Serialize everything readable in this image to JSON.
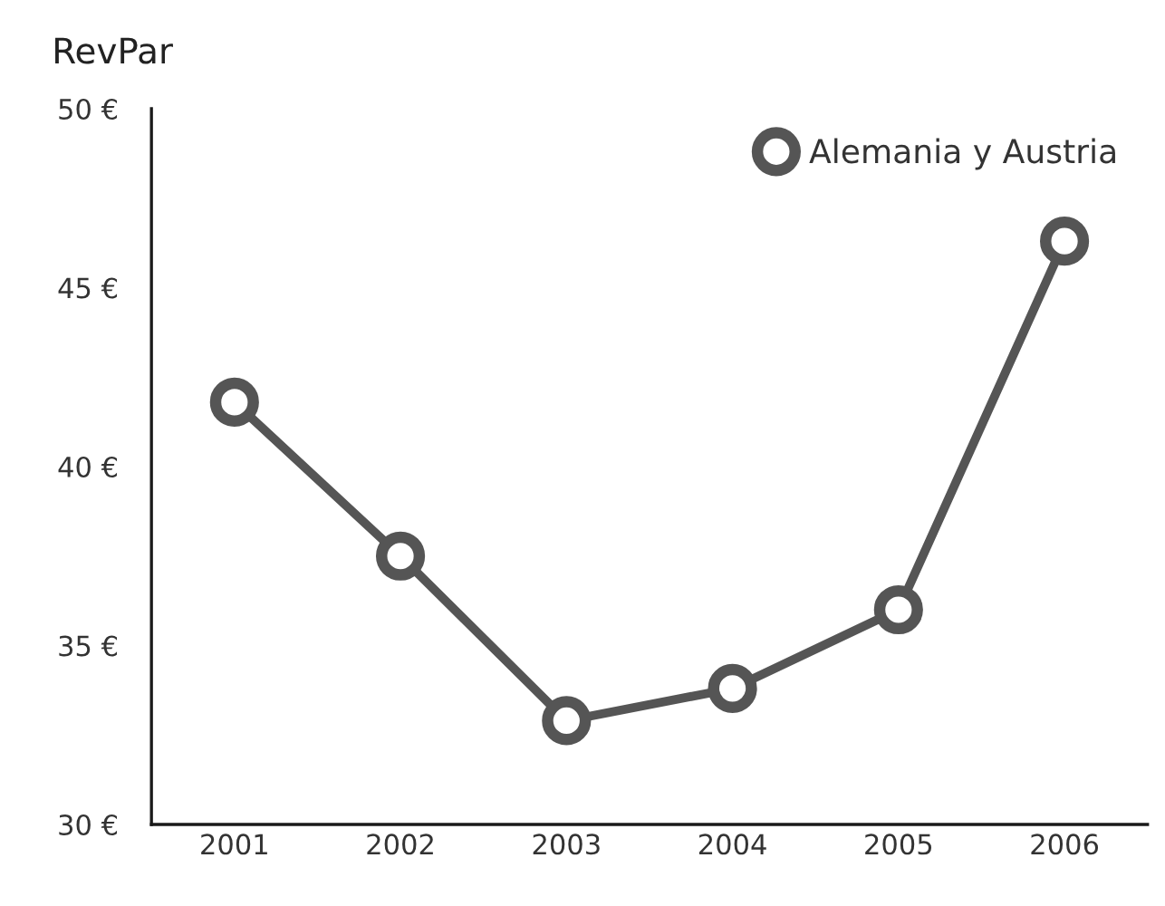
{
  "chart_data": {
    "type": "line",
    "title": "RevPar",
    "categories": [
      "2001",
      "2002",
      "2003",
      "2004",
      "2005",
      "2006"
    ],
    "series": [
      {
        "name": "Alemania y Austria",
        "color": "#555555",
        "values": [
          41.8,
          37.5,
          32.9,
          33.8,
          36.0,
          46.3
        ]
      }
    ],
    "ylim": [
      30,
      50
    ],
    "yticks": [
      {
        "value": 30,
        "label": "30 €"
      },
      {
        "value": 35,
        "label": "35 €"
      },
      {
        "value": 40,
        "label": "40 €"
      },
      {
        "value": 45,
        "label": "45 €"
      },
      {
        "value": 50,
        "label": "50 €"
      }
    ],
    "marker": "circle",
    "line_style": "solid",
    "grid": false,
    "legend": "top right"
  }
}
